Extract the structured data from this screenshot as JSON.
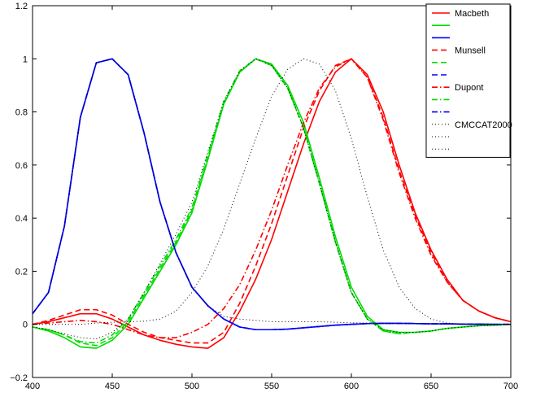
{
  "chart_data": {
    "type": "line",
    "title": "",
    "xlabel": "",
    "ylabel": "",
    "xlim": [
      400,
      700
    ],
    "ylim": [
      -0.2,
      1.2
    ],
    "xticks": [
      400,
      450,
      500,
      550,
      600,
      650,
      700
    ],
    "yticks": [
      -0.2,
      0,
      0.2,
      0.4,
      0.6,
      0.8,
      1,
      1.2
    ],
    "xtick_labels": [
      "400",
      "450",
      "500",
      "550",
      "600",
      "650",
      "700"
    ],
    "ytick_labels": [
      "−0.2",
      "0",
      "0.2",
      "0.4",
      "0.6",
      "0.8",
      "1",
      "1.2"
    ],
    "grid": false,
    "legend_position": "top-right",
    "legend": [
      "Macbeth",
      "",
      "",
      "Munsell",
      "",
      "",
      "Dupont",
      "",
      "",
      "CMCCAT2000",
      "",
      ""
    ],
    "series": [
      {
        "name": "Macbeth",
        "color": "#ff0000",
        "style": "solid",
        "x": [
          400,
          410,
          420,
          430,
          440,
          450,
          460,
          470,
          480,
          490,
          500,
          510,
          520,
          530,
          540,
          550,
          560,
          570,
          580,
          590,
          600,
          610,
          620,
          630,
          640,
          650,
          660,
          670,
          680,
          690,
          700
        ],
        "y": [
          0.0,
          0.01,
          0.025,
          0.04,
          0.04,
          0.02,
          -0.01,
          -0.04,
          -0.06,
          -0.075,
          -0.085,
          -0.09,
          -0.05,
          0.05,
          0.17,
          0.32,
          0.5,
          0.68,
          0.84,
          0.95,
          1.0,
          0.94,
          0.8,
          0.6,
          0.42,
          0.28,
          0.17,
          0.09,
          0.05,
          0.025,
          0.01
        ]
      },
      {
        "name": "",
        "color": "#00dd00",
        "style": "solid",
        "x": [
          400,
          410,
          420,
          430,
          440,
          450,
          460,
          470,
          480,
          490,
          500,
          510,
          520,
          530,
          540,
          550,
          560,
          570,
          580,
          590,
          600,
          610,
          620,
          630,
          640,
          650,
          660,
          670,
          680,
          690,
          700
        ],
        "y": [
          -0.01,
          -0.025,
          -0.05,
          -0.085,
          -0.09,
          -0.06,
          0.0,
          0.1,
          0.2,
          0.3,
          0.42,
          0.62,
          0.83,
          0.95,
          1.0,
          0.98,
          0.9,
          0.76,
          0.55,
          0.33,
          0.14,
          0.03,
          -0.02,
          -0.03,
          -0.03,
          -0.025,
          -0.015,
          -0.01,
          -0.005,
          -0.003,
          0.0
        ]
      },
      {
        "name": "",
        "color": "#0000ff",
        "style": "solid",
        "x": [
          400,
          410,
          420,
          430,
          440,
          450,
          460,
          470,
          480,
          490,
          500,
          510,
          520,
          530,
          540,
          550,
          560,
          570,
          580,
          590,
          600,
          610,
          620,
          630,
          640,
          650,
          660,
          670,
          680,
          690,
          700
        ],
        "y": [
          0.04,
          0.12,
          0.37,
          0.78,
          0.985,
          1.0,
          0.94,
          0.72,
          0.46,
          0.27,
          0.14,
          0.07,
          0.02,
          -0.01,
          -0.02,
          -0.02,
          -0.018,
          -0.013,
          -0.008,
          -0.003,
          0.0,
          0.003,
          0.004,
          0.004,
          0.003,
          0.002,
          0.002,
          0.001,
          0.001,
          0.0,
          0.0
        ]
      },
      {
        "name": "Munsell",
        "color": "#ff0000",
        "style": "dashed",
        "x": [
          400,
          410,
          420,
          430,
          440,
          450,
          460,
          470,
          480,
          490,
          500,
          510,
          520,
          530,
          540,
          550,
          560,
          570,
          580,
          590,
          600,
          610,
          620,
          630,
          640,
          650,
          660,
          670,
          680,
          690,
          700
        ],
        "y": [
          0.0,
          0.015,
          0.035,
          0.055,
          0.055,
          0.035,
          0.0,
          -0.03,
          -0.05,
          -0.06,
          -0.07,
          -0.07,
          -0.03,
          0.08,
          0.22,
          0.38,
          0.56,
          0.74,
          0.88,
          0.975,
          1.0,
          0.93,
          0.78,
          0.58,
          0.41,
          0.27,
          0.16,
          0.09,
          0.05,
          0.025,
          0.01
        ]
      },
      {
        "name": "",
        "color": "#00dd00",
        "style": "dashed",
        "x": [
          400,
          410,
          420,
          430,
          440,
          450,
          460,
          470,
          480,
          490,
          500,
          510,
          520,
          530,
          540,
          550,
          560,
          570,
          580,
          590,
          600,
          610,
          620,
          630,
          640,
          650,
          660,
          670,
          680,
          690,
          700
        ],
        "y": [
          -0.01,
          -0.02,
          -0.04,
          -0.07,
          -0.08,
          -0.05,
          0.01,
          0.11,
          0.21,
          0.31,
          0.43,
          0.63,
          0.83,
          0.95,
          1.0,
          0.975,
          0.89,
          0.74,
          0.53,
          0.31,
          0.12,
          0.02,
          -0.025,
          -0.035,
          -0.03,
          -0.025,
          -0.015,
          -0.01,
          -0.005,
          -0.003,
          0.0
        ]
      },
      {
        "name": "",
        "color": "#0000ff",
        "style": "dashed",
        "x": [
          400,
          410,
          420,
          430,
          440,
          450,
          460,
          470,
          480,
          490,
          500,
          510,
          520,
          530,
          540,
          550,
          560,
          570,
          580,
          590,
          600,
          610,
          620,
          630,
          640,
          650,
          660,
          670,
          680,
          690,
          700
        ],
        "y": [
          0.04,
          0.12,
          0.37,
          0.78,
          0.985,
          1.0,
          0.94,
          0.72,
          0.46,
          0.27,
          0.14,
          0.07,
          0.02,
          -0.01,
          -0.02,
          -0.02,
          -0.018,
          -0.013,
          -0.008,
          -0.003,
          0.0,
          0.003,
          0.004,
          0.004,
          0.003,
          0.002,
          0.002,
          0.001,
          0.001,
          0.0,
          0.0
        ]
      },
      {
        "name": "Dupont",
        "color": "#ff0000",
        "style": "dashdot",
        "x": [
          400,
          410,
          420,
          430,
          440,
          450,
          460,
          470,
          480,
          490,
          500,
          510,
          520,
          530,
          540,
          550,
          560,
          570,
          580,
          590,
          600,
          610,
          620,
          630,
          640,
          650,
          660,
          670,
          680,
          690,
          700
        ],
        "y": [
          0.0,
          0.005,
          0.01,
          0.015,
          0.01,
          0.0,
          -0.02,
          -0.04,
          -0.05,
          -0.05,
          -0.03,
          0.0,
          0.06,
          0.15,
          0.28,
          0.43,
          0.6,
          0.76,
          0.89,
          0.97,
          1.0,
          0.93,
          0.77,
          0.57,
          0.4,
          0.26,
          0.16,
          0.09,
          0.05,
          0.025,
          0.01
        ]
      },
      {
        "name": "",
        "color": "#00dd00",
        "style": "dashdot",
        "x": [
          400,
          410,
          420,
          430,
          440,
          450,
          460,
          470,
          480,
          490,
          500,
          510,
          520,
          530,
          540,
          550,
          560,
          570,
          580,
          590,
          600,
          610,
          620,
          630,
          640,
          650,
          660,
          670,
          680,
          690,
          700
        ],
        "y": [
          -0.01,
          -0.02,
          -0.04,
          -0.065,
          -0.07,
          -0.04,
          0.02,
          0.12,
          0.22,
          0.32,
          0.44,
          0.64,
          0.84,
          0.955,
          1.0,
          0.975,
          0.89,
          0.74,
          0.53,
          0.31,
          0.12,
          0.02,
          -0.025,
          -0.035,
          -0.03,
          -0.025,
          -0.015,
          -0.01,
          -0.005,
          -0.003,
          0.0
        ]
      },
      {
        "name": "",
        "color": "#0000ff",
        "style": "dashdot",
        "x": [
          400,
          410,
          420,
          430,
          440,
          450,
          460,
          470,
          480,
          490,
          500,
          510,
          520,
          530,
          540,
          550,
          560,
          570,
          580,
          590,
          600,
          610,
          620,
          630,
          640,
          650,
          660,
          670,
          680,
          690,
          700
        ],
        "y": [
          0.04,
          0.12,
          0.37,
          0.78,
          0.985,
          1.0,
          0.94,
          0.72,
          0.46,
          0.27,
          0.14,
          0.07,
          0.02,
          -0.01,
          -0.02,
          -0.02,
          -0.018,
          -0.013,
          -0.008,
          -0.003,
          0.0,
          0.003,
          0.004,
          0.004,
          0.003,
          0.002,
          0.002,
          0.001,
          0.001,
          0.0,
          0.0
        ]
      },
      {
        "name": "CMCCAT2000",
        "color": "#000000",
        "style": "dotted",
        "x": [
          400,
          410,
          420,
          430,
          440,
          450,
          460,
          470,
          480,
          490,
          500,
          510,
          520,
          530,
          540,
          550,
          560,
          570,
          580,
          590,
          600,
          610,
          620,
          630,
          640,
          650,
          660,
          670,
          680,
          690,
          700
        ],
        "y": [
          0.0,
          0.0,
          0.0,
          0.0,
          0.005,
          0.008,
          0.01,
          0.012,
          0.02,
          0.05,
          0.12,
          0.22,
          0.36,
          0.53,
          0.7,
          0.86,
          0.96,
          1.0,
          0.98,
          0.88,
          0.7,
          0.48,
          0.28,
          0.14,
          0.06,
          0.02,
          0.005,
          0.0,
          0.0,
          0.0,
          0.0
        ]
      },
      {
        "name": "",
        "color": "#000000",
        "style": "dotted",
        "x": [
          400,
          410,
          420,
          430,
          440,
          450,
          460,
          470,
          480,
          490,
          500,
          510,
          520,
          530,
          540,
          550,
          560,
          570,
          580,
          590,
          600,
          610,
          620,
          630,
          640,
          650,
          660,
          670,
          680,
          690,
          700
        ],
        "y": [
          -0.01,
          -0.02,
          -0.035,
          -0.05,
          -0.055,
          -0.03,
          0.02,
          0.12,
          0.23,
          0.34,
          0.46,
          0.65,
          0.84,
          0.955,
          1.0,
          0.975,
          0.89,
          0.74,
          0.53,
          0.31,
          0.12,
          0.02,
          -0.02,
          -0.03,
          -0.03,
          -0.025,
          -0.015,
          -0.01,
          -0.005,
          -0.003,
          0.0
        ]
      },
      {
        "name": "",
        "color": "#000000",
        "style": "dotted",
        "x": [
          400,
          410,
          420,
          430,
          440,
          450,
          460,
          470,
          480,
          490,
          500,
          510,
          520,
          530,
          540,
          550,
          560,
          570,
          580,
          590,
          600,
          610,
          620,
          630,
          640,
          650,
          660,
          670,
          680,
          690,
          700
        ],
        "y": [
          0.04,
          0.12,
          0.37,
          0.78,
          0.985,
          1.0,
          0.94,
          0.72,
          0.46,
          0.27,
          0.14,
          0.07,
          0.03,
          0.02,
          0.015,
          0.01,
          0.01,
          0.01,
          0.01,
          0.008,
          0.006,
          0.005,
          0.004,
          0.003,
          0.003,
          0.002,
          0.002,
          0.001,
          0.001,
          0.0,
          0.0
        ]
      }
    ]
  }
}
